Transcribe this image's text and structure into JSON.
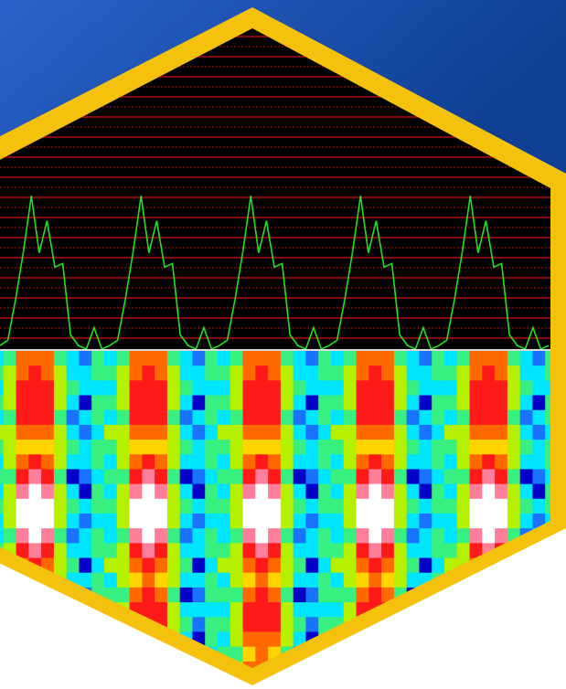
{
  "logo": {
    "description_free": true,
    "colors": {
      "background_top": "#2a62c9",
      "background_bottom": "#0f3f92",
      "border": "#f4c20d",
      "plot_background": "#000000",
      "grid_solid": "#d21212",
      "grid_dotted": "#c01010",
      "waveform": "#22e022",
      "divider": "#dcdcdc"
    },
    "waveform": {
      "periods": 5,
      "profile": [
        0.02,
        0.05,
        0.28,
        0.55,
        0.86,
        0.54,
        0.72,
        0.46,
        0.48,
        0.08,
        0.02,
        0.0,
        0.12,
        0.0
      ]
    },
    "heatmap": {
      "palette": [
        "#0000c8",
        "#1a73ff",
        "#00e5ff",
        "#38f080",
        "#b4f000",
        "#ffd400",
        "#ff6a00",
        "#ff1a1a",
        "#ff7f9a",
        "#ffffff"
      ],
      "columns_per_period": 9,
      "rows": 22,
      "period_columns": [
        [
          2,
          3,
          2,
          3,
          2,
          4,
          3,
          2,
          3,
          2,
          3,
          2,
          2,
          3,
          4,
          2,
          3,
          2,
          3,
          2,
          3,
          2
        ],
        [
          3,
          4,
          4,
          4,
          3,
          4,
          4,
          4,
          3,
          4,
          4,
          4,
          3,
          4,
          4,
          4,
          3,
          4,
          4,
          4,
          3,
          4
        ],
        [
          6,
          6,
          7,
          7,
          7,
          6,
          5,
          6,
          7,
          8,
          9,
          9,
          8,
          7,
          6,
          5,
          6,
          7,
          7,
          6,
          5,
          6
        ],
        [
          6,
          7,
          7,
          7,
          7,
          6,
          5,
          7,
          8,
          9,
          9,
          9,
          9,
          8,
          7,
          6,
          7,
          7,
          7,
          6,
          6,
          6
        ],
        [
          6,
          6,
          7,
          7,
          7,
          6,
          5,
          6,
          7,
          8,
          9,
          9,
          8,
          7,
          6,
          5,
          6,
          7,
          7,
          6,
          5,
          6
        ],
        [
          3,
          4,
          4,
          4,
          3,
          4,
          4,
          4,
          3,
          4,
          4,
          4,
          3,
          4,
          4,
          4,
          3,
          4,
          4,
          4,
          3,
          4
        ],
        [
          2,
          2,
          3,
          2,
          1,
          2,
          3,
          2,
          0,
          2,
          3,
          2,
          1,
          2,
          3,
          2,
          0,
          2,
          3,
          2,
          1,
          2
        ],
        [
          1,
          2,
          2,
          0,
          2,
          1,
          2,
          2,
          1,
          0,
          2,
          1,
          2,
          2,
          0,
          2,
          1,
          2,
          1,
          0,
          2,
          1
        ],
        [
          3,
          3,
          2,
          3,
          3,
          2,
          3,
          3,
          2,
          3,
          3,
          2,
          3,
          3,
          2,
          3,
          3,
          2,
          3,
          3,
          2,
          3
        ]
      ]
    }
  }
}
